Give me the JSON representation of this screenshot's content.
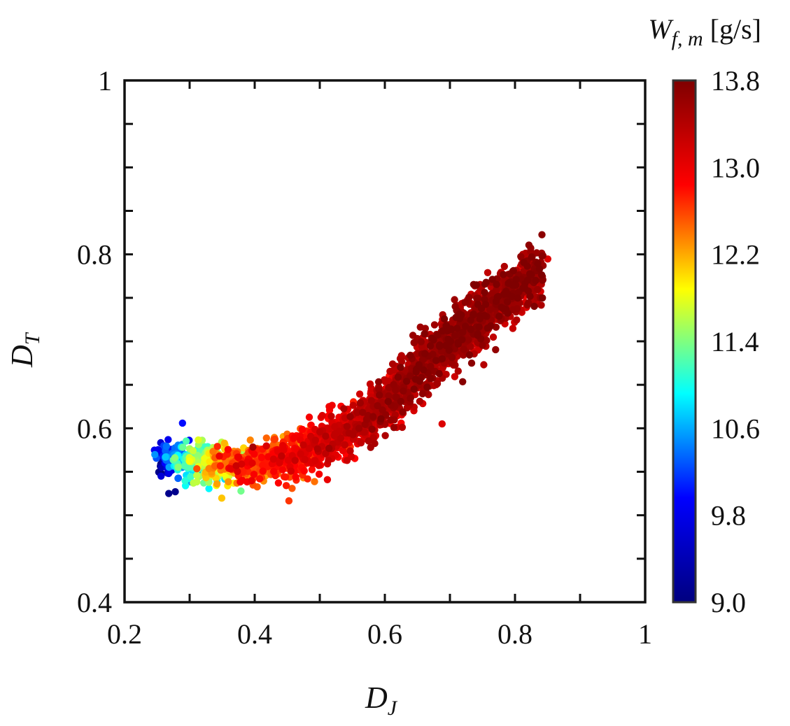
{
  "chart_data": {
    "type": "scatter",
    "title": "",
    "xlabel": "D_J",
    "ylabel": "D_T",
    "xlim": [
      0.2,
      1.0
    ],
    "ylim": [
      0.4,
      1.0
    ],
    "x_ticks": [
      0.2,
      0.4,
      0.6,
      0.8,
      1.0
    ],
    "x_tick_labels": [
      "0.2",
      "0.4",
      "0.6",
      "0.8",
      "1"
    ],
    "y_ticks": [
      0.4,
      0.6,
      0.8,
      1.0
    ],
    "y_tick_labels": [
      "0.4",
      "0.6",
      "0.8",
      "1"
    ],
    "x_label_parts": {
      "main": "D",
      "sub": "J"
    },
    "y_label_parts": {
      "main": "D",
      "sub": "T"
    },
    "grid": false,
    "colorbar": {
      "title_main": "W",
      "title_sub": "f, m",
      "title_units": " [g/s]",
      "range": [
        9.0,
        13.8
      ],
      "ticks": [
        13.8,
        13.0,
        12.2,
        11.4,
        10.6,
        9.8,
        9.0
      ],
      "tick_labels": [
        "13.8",
        "13.0",
        "12.2",
        "11.4",
        "10.6",
        "9.8",
        "9.0"
      ],
      "colormap": "jet",
      "colormap_stops": [
        "#00007f",
        "#0000ff",
        "#00ffff",
        "#ffff00",
        "#ff0000",
        "#7f0000"
      ],
      "frame_color": "#333333"
    },
    "point_cloud": {
      "description": "Dense cloud of points sampled along an upward-curving band",
      "count": 2600,
      "curve_x": [
        0.25,
        0.3,
        0.35,
        0.4,
        0.45,
        0.5,
        0.55,
        0.6,
        0.65,
        0.7,
        0.75,
        0.8,
        0.84
      ],
      "curve_y": [
        0.565,
        0.563,
        0.56,
        0.56,
        0.565,
        0.58,
        0.6,
        0.63,
        0.665,
        0.7,
        0.73,
        0.76,
        0.78
      ],
      "curve_w": [
        9.4,
        11.0,
        11.9,
        12.4,
        12.7,
        12.9,
        13.1,
        13.3,
        13.4,
        13.5,
        13.5,
        13.5,
        13.5
      ],
      "outliers": [
        {
          "x": 0.812,
          "y": 0.8,
          "w": 13.4
        },
        {
          "x": 0.835,
          "y": 0.783,
          "w": 13.4
        },
        {
          "x": 0.289,
          "y": 0.606,
          "w": 10.0
        },
        {
          "x": 0.268,
          "y": 0.525,
          "w": 9.1
        },
        {
          "x": 0.278,
          "y": 0.527,
          "w": 9.1
        },
        {
          "x": 0.688,
          "y": 0.605,
          "w": 13.1
        },
        {
          "x": 0.625,
          "y": 0.606,
          "w": 12.9
        },
        {
          "x": 0.475,
          "y": 0.543,
          "w": 12.3
        }
      ]
    }
  }
}
